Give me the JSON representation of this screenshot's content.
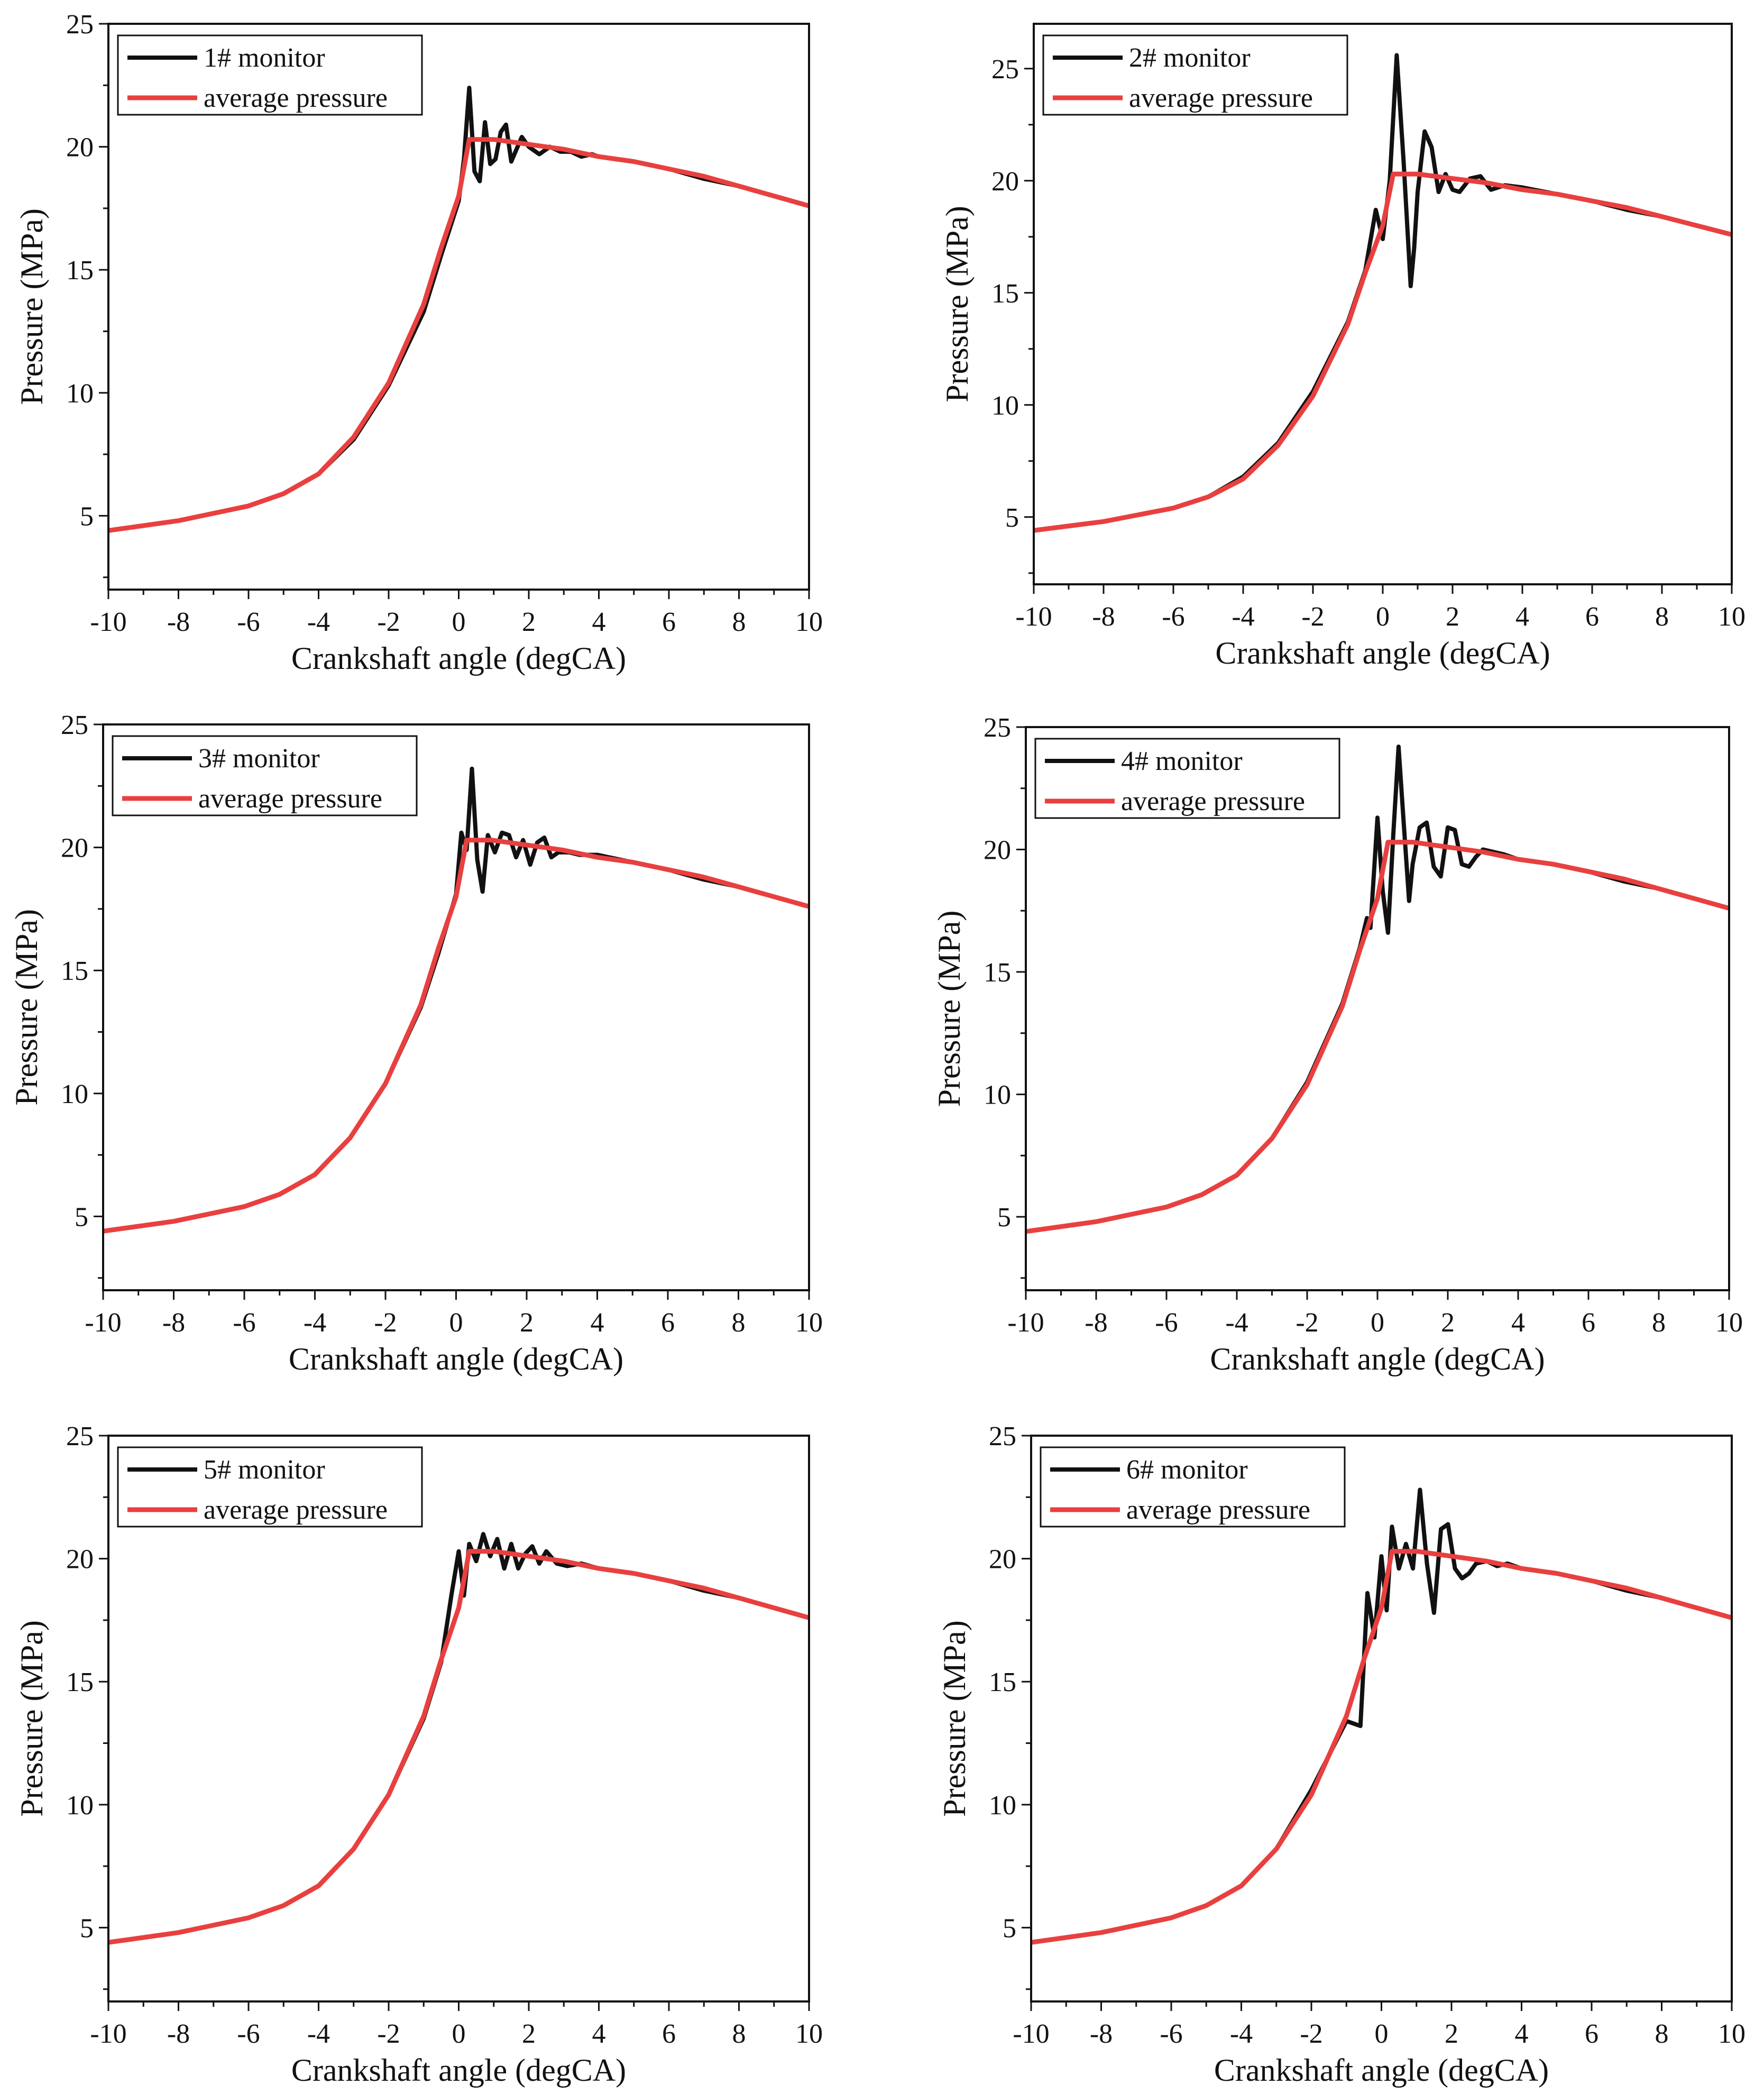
{
  "figure_title": "",
  "chart_data": [
    {
      "type": "line",
      "panel": 1,
      "xlabel": "Crankshaft angle (degCA)",
      "ylabel": "Pressure (MPa)",
      "xlim": [
        -10,
        10
      ],
      "ylim": [
        2,
        25
      ],
      "xticks": [
        "-10",
        "-8",
        "-6",
        "-4",
        "-2",
        "0",
        "2",
        "4",
        "6",
        "8",
        "10"
      ],
      "yticks": [
        "5",
        "10",
        "15",
        "20",
        "25"
      ],
      "legend_position": "top-left",
      "series": [
        {
          "name": "1# monitor",
          "color": "#111111",
          "x": [
            -10,
            -8,
            -6,
            -5,
            -4,
            -3,
            -2,
            -1,
            -0.5,
            0,
            0.15,
            0.3,
            0.45,
            0.6,
            0.75,
            0.9,
            1.05,
            1.2,
            1.35,
            1.5,
            1.65,
            1.8,
            2.0,
            2.3,
            2.6,
            2.9,
            3.2,
            3.5,
            3.8,
            4,
            5,
            6,
            7,
            8,
            9,
            10
          ],
          "y": [
            4.4,
            4.8,
            5.4,
            5.9,
            6.7,
            8.1,
            10.3,
            13.3,
            15.6,
            17.8,
            19.5,
            22.4,
            19.0,
            18.6,
            21.0,
            19.3,
            19.5,
            20.6,
            20.9,
            19.4,
            19.9,
            20.4,
            20.0,
            19.7,
            20.0,
            19.8,
            19.8,
            19.6,
            19.7,
            19.6,
            19.4,
            19.1,
            18.7,
            18.4,
            18.0,
            17.6
          ]
        },
        {
          "name": "average pressure",
          "color": "#e8403f",
          "x": [
            -10,
            -8,
            -6,
            -5,
            -4,
            -3,
            -2,
            -1,
            -0.5,
            0,
            0.3,
            1,
            2,
            3,
            4,
            5,
            6,
            7,
            8,
            9,
            10
          ],
          "y": [
            4.4,
            4.8,
            5.4,
            5.9,
            6.7,
            8.2,
            10.4,
            13.6,
            15.9,
            18.0,
            20.3,
            20.3,
            20.1,
            19.9,
            19.6,
            19.4,
            19.1,
            18.8,
            18.4,
            18.0,
            17.6
          ]
        }
      ]
    },
    {
      "type": "line",
      "panel": 2,
      "xlabel": "Crankshaft angle (degCA)",
      "ylabel": "Pressure (MPa)",
      "xlim": [
        -10,
        10
      ],
      "ylim": [
        2,
        27
      ],
      "xticks": [
        "-10",
        "-8",
        "-6",
        "-4",
        "-2",
        "0",
        "2",
        "4",
        "6",
        "8",
        "10"
      ],
      "yticks": [
        "5",
        "10",
        "15",
        "20",
        "25"
      ],
      "legend_position": "top-left",
      "series": [
        {
          "name": "2# monitor",
          "color": "#111111",
          "x": [
            -10,
            -8,
            -6,
            -5,
            -4,
            -3,
            -2,
            -1,
            -0.5,
            -0.2,
            0,
            0.2,
            0.4,
            0.6,
            0.8,
            0.9,
            1.0,
            1.2,
            1.4,
            1.6,
            1.8,
            2.0,
            2.2,
            2.5,
            2.8,
            3.1,
            3.5,
            4,
            5,
            6,
            7,
            8,
            9,
            10
          ],
          "y": [
            4.4,
            4.8,
            5.4,
            5.9,
            6.8,
            8.3,
            10.6,
            13.7,
            16.0,
            18.7,
            17.4,
            20.0,
            25.6,
            20.8,
            15.3,
            17.0,
            19.5,
            22.2,
            21.5,
            19.5,
            20.3,
            19.6,
            19.5,
            20.1,
            20.2,
            19.6,
            19.8,
            19.7,
            19.4,
            19.1,
            18.7,
            18.4,
            18.0,
            17.6
          ]
        },
        {
          "name": "average pressure",
          "color": "#e8403f",
          "x": [
            -10,
            -8,
            -6,
            -5,
            -4,
            -3,
            -2,
            -1,
            -0.5,
            0,
            0.3,
            1,
            2,
            3,
            4,
            5,
            6,
            7,
            8,
            9,
            10
          ],
          "y": [
            4.4,
            4.8,
            5.4,
            5.9,
            6.7,
            8.2,
            10.4,
            13.6,
            15.9,
            18.0,
            20.3,
            20.3,
            20.1,
            19.9,
            19.6,
            19.4,
            19.1,
            18.8,
            18.4,
            18.0,
            17.6
          ]
        }
      ]
    },
    {
      "type": "line",
      "panel": 3,
      "xlabel": "Crankshaft angle (degCA)",
      "ylabel": "Pressure (MPa)",
      "xlim": [
        -10,
        10
      ],
      "ylim": [
        2,
        25
      ],
      "xticks": [
        "-10",
        "-8",
        "-6",
        "-4",
        "-2",
        "0",
        "2",
        "4",
        "6",
        "8",
        "10"
      ],
      "yticks": [
        "5",
        "10",
        "15",
        "20",
        "25"
      ],
      "legend_position": "top-left",
      "series": [
        {
          "name": "3# monitor",
          "color": "#111111",
          "x": [
            -10,
            -8,
            -6,
            -5,
            -4,
            -3,
            -2,
            -1,
            -0.5,
            0,
            0.15,
            0.3,
            0.45,
            0.6,
            0.75,
            0.9,
            1.1,
            1.3,
            1.5,
            1.7,
            1.9,
            2.1,
            2.3,
            2.5,
            2.7,
            2.9,
            3.2,
            3.5,
            4,
            5,
            6,
            7,
            8,
            9,
            10
          ],
          "y": [
            4.4,
            4.8,
            5.4,
            5.9,
            6.7,
            8.2,
            10.4,
            13.5,
            15.7,
            18.1,
            20.6,
            19.9,
            23.2,
            19.5,
            18.2,
            20.5,
            19.8,
            20.6,
            20.5,
            19.6,
            20.3,
            19.3,
            20.2,
            20.4,
            19.6,
            19.8,
            19.8,
            19.7,
            19.7,
            19.4,
            19.1,
            18.7,
            18.4,
            18.0,
            17.6
          ]
        },
        {
          "name": "average pressure",
          "color": "#e8403f",
          "x": [
            -10,
            -8,
            -6,
            -5,
            -4,
            -3,
            -2,
            -1,
            -0.5,
            0,
            0.3,
            1,
            2,
            3,
            4,
            5,
            6,
            7,
            8,
            9,
            10
          ],
          "y": [
            4.4,
            4.8,
            5.4,
            5.9,
            6.7,
            8.2,
            10.4,
            13.6,
            15.9,
            18.0,
            20.3,
            20.3,
            20.1,
            19.9,
            19.6,
            19.4,
            19.1,
            18.8,
            18.4,
            18.0,
            17.6
          ]
        }
      ]
    },
    {
      "type": "line",
      "panel": 4,
      "xlabel": "Crankshaft angle (degCA)",
      "ylabel": "Pressure (MPa)",
      "xlim": [
        -10,
        10
      ],
      "ylim": [
        2,
        25
      ],
      "xticks": [
        "-10",
        "-8",
        "-6",
        "-4",
        "-2",
        "0",
        "2",
        "4",
        "6",
        "8",
        "10"
      ],
      "yticks": [
        "5",
        "10",
        "15",
        "20",
        "25"
      ],
      "legend_position": "top-left",
      "series": [
        {
          "name": "4# monitor",
          "color": "#111111",
          "x": [
            -10,
            -8,
            -6,
            -5,
            -4,
            -3,
            -2,
            -1,
            -0.5,
            -0.3,
            -0.2,
            0,
            0.15,
            0.3,
            0.45,
            0.6,
            0.75,
            0.9,
            1.0,
            1.2,
            1.4,
            1.6,
            1.8,
            2.0,
            2.2,
            2.4,
            2.6,
            2.8,
            3.0,
            3.3,
            3.6,
            4,
            5,
            6,
            7,
            8,
            9,
            10
          ],
          "y": [
            4.4,
            4.8,
            5.4,
            5.9,
            6.7,
            8.2,
            10.5,
            13.7,
            16.0,
            17.2,
            16.8,
            21.3,
            18.3,
            16.6,
            20.6,
            24.2,
            21.0,
            17.9,
            19.4,
            20.9,
            21.1,
            19.3,
            18.9,
            20.9,
            20.8,
            19.4,
            19.3,
            19.7,
            20.0,
            19.9,
            19.8,
            19.6,
            19.4,
            19.1,
            18.7,
            18.4,
            18.0,
            17.6
          ]
        },
        {
          "name": "average pressure",
          "color": "#e8403f",
          "x": [
            -10,
            -8,
            -6,
            -5,
            -4,
            -3,
            -2,
            -1,
            -0.5,
            0,
            0.3,
            1,
            2,
            3,
            4,
            5,
            6,
            7,
            8,
            9,
            10
          ],
          "y": [
            4.4,
            4.8,
            5.4,
            5.9,
            6.7,
            8.2,
            10.4,
            13.6,
            15.9,
            18.0,
            20.3,
            20.3,
            20.1,
            19.9,
            19.6,
            19.4,
            19.1,
            18.8,
            18.4,
            18.0,
            17.6
          ]
        }
      ]
    },
    {
      "type": "line",
      "panel": 5,
      "xlabel": "Crankshaft angle (degCA)",
      "ylabel": "Pressure (MPa)",
      "xlim": [
        -10,
        10
      ],
      "ylim": [
        2,
        25
      ],
      "xticks": [
        "-10",
        "-8",
        "-6",
        "-4",
        "-2",
        "0",
        "2",
        "4",
        "6",
        "8",
        "10"
      ],
      "yticks": [
        "5",
        "10",
        "15",
        "20",
        "25"
      ],
      "legend_position": "top-left",
      "series": [
        {
          "name": "5# monitor",
          "color": "#111111",
          "x": [
            -10,
            -8,
            -6,
            -5,
            -4,
            -3,
            -2,
            -1,
            -0.5,
            -0.2,
            0,
            0.15,
            0.3,
            0.5,
            0.7,
            0.9,
            1.1,
            1.3,
            1.5,
            1.7,
            1.9,
            2.1,
            2.3,
            2.5,
            2.8,
            3.1,
            3.5,
            4,
            5,
            6,
            7,
            8,
            9,
            10
          ],
          "y": [
            4.4,
            4.8,
            5.4,
            5.9,
            6.7,
            8.2,
            10.4,
            13.5,
            15.8,
            18.6,
            20.3,
            18.5,
            20.6,
            19.9,
            21.0,
            20.1,
            20.8,
            19.6,
            20.6,
            19.6,
            20.2,
            20.5,
            19.8,
            20.3,
            19.8,
            19.7,
            19.8,
            19.6,
            19.4,
            19.1,
            18.7,
            18.4,
            18.0,
            17.6
          ]
        },
        {
          "name": "average pressure",
          "color": "#e8403f",
          "x": [
            -10,
            -8,
            -6,
            -5,
            -4,
            -3,
            -2,
            -1,
            -0.5,
            0,
            0.3,
            1,
            2,
            3,
            4,
            5,
            6,
            7,
            8,
            9,
            10
          ],
          "y": [
            4.4,
            4.8,
            5.4,
            5.9,
            6.7,
            8.2,
            10.4,
            13.6,
            15.9,
            18.0,
            20.3,
            20.3,
            20.1,
            19.9,
            19.6,
            19.4,
            19.1,
            18.8,
            18.4,
            18.0,
            17.6
          ]
        }
      ]
    },
    {
      "type": "line",
      "panel": 6,
      "xlabel": "Crankshaft angle (degCA)",
      "ylabel": "Pressure (MPa)",
      "xlim": [
        -10,
        10
      ],
      "ylim": [
        2,
        25
      ],
      "xticks": [
        "-10",
        "-8",
        "-6",
        "-4",
        "-2",
        "0",
        "2",
        "4",
        "6",
        "8",
        "10"
      ],
      "yticks": [
        "5",
        "10",
        "15",
        "20",
        "25"
      ],
      "legend_position": "top-left",
      "series": [
        {
          "name": "6# monitor",
          "color": "#111111",
          "x": [
            -10,
            -8,
            -6,
            -5,
            -4,
            -3,
            -2,
            -1,
            -0.6,
            -0.4,
            -0.2,
            0,
            0.15,
            0.3,
            0.5,
            0.7,
            0.9,
            1.1,
            1.3,
            1.5,
            1.7,
            1.9,
            2.1,
            2.3,
            2.5,
            2.7,
            3.0,
            3.3,
            3.6,
            4,
            5,
            6,
            7,
            8,
            9,
            10
          ],
          "y": [
            4.4,
            4.8,
            5.4,
            5.9,
            6.7,
            8.2,
            10.6,
            13.4,
            13.2,
            18.6,
            16.8,
            20.1,
            17.9,
            21.3,
            19.6,
            20.6,
            19.6,
            22.8,
            19.8,
            17.8,
            21.2,
            21.4,
            19.6,
            19.2,
            19.4,
            19.8,
            19.9,
            19.7,
            19.8,
            19.6,
            19.4,
            19.1,
            18.7,
            18.4,
            18.0,
            17.6
          ]
        },
        {
          "name": "average pressure",
          "color": "#e8403f",
          "x": [
            -10,
            -8,
            -6,
            -5,
            -4,
            -3,
            -2,
            -1,
            -0.5,
            0,
            0.3,
            1,
            2,
            3,
            4,
            5,
            6,
            7,
            8,
            9,
            10
          ],
          "y": [
            4.4,
            4.8,
            5.4,
            5.9,
            6.7,
            8.2,
            10.4,
            13.6,
            15.9,
            18.0,
            20.3,
            20.3,
            20.1,
            19.9,
            19.6,
            19.4,
            19.1,
            18.8,
            18.4,
            18.0,
            17.6
          ]
        }
      ]
    }
  ]
}
